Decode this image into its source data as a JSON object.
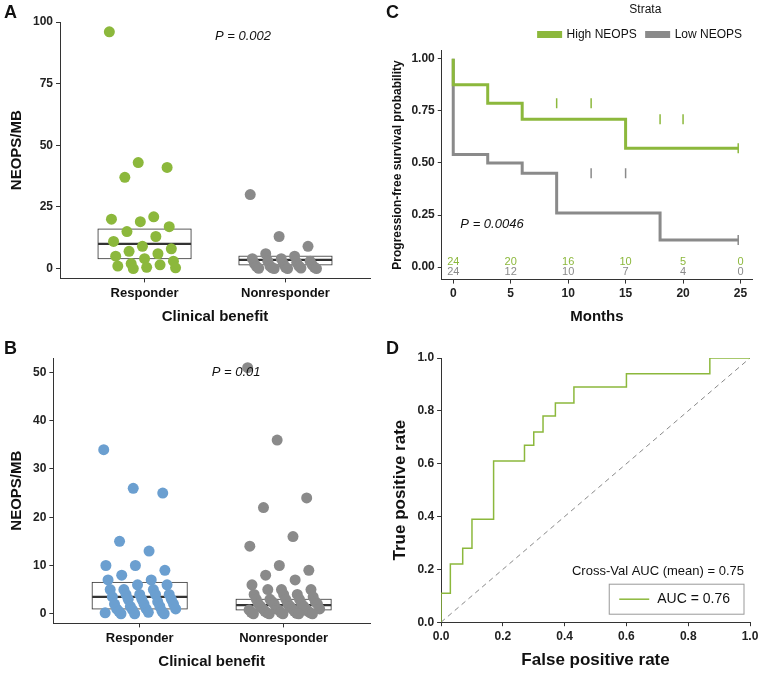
{
  "chart_data": [
    {
      "panel": "A",
      "type": "box_scatter",
      "xlabel": "Clinical benefit",
      "ylabel": "NEOPS/MB",
      "annotation": "P = 0.002",
      "categories": [
        "Responder",
        "Nonresponder"
      ],
      "colors": [
        "#8cb83c",
        "#8a8a8a"
      ],
      "values": [
        [
          96,
          43,
          41,
          37,
          21,
          20,
          19,
          17,
          15,
          13,
          11,
          9,
          8,
          7,
          6,
          5,
          4,
          3,
          2,
          1.5,
          1,
          0.5,
          0.3,
          0
        ],
        [
          30,
          13,
          9,
          6,
          5,
          4,
          4,
          3,
          3,
          2.5,
          2,
          2,
          1.5,
          1,
          1,
          0.8,
          0.5,
          0.5,
          0.3,
          0.2,
          0.1,
          0,
          0,
          0
        ]
      ],
      "boxes": [
        {
          "q1": 4,
          "median": 10,
          "q3": 16
        },
        {
          "q1": 1.5,
          "median": 3.5,
          "q3": 5
        }
      ],
      "ylim": [
        -4,
        100
      ],
      "yticks": [
        0,
        25,
        50,
        75,
        100
      ],
      "grid": false
    },
    {
      "panel": "B",
      "type": "box_scatter",
      "xlabel": "Clinical benefit",
      "ylabel": "NEOPS/MB",
      "annotation": "P = 0.01",
      "categories": [
        "Responder",
        "Nonresponder"
      ],
      "colors": [
        "#6b9fd0",
        "#8a8a8a"
      ],
      "values": [
        [
          34,
          26,
          25,
          15,
          13,
          10,
          10,
          9,
          8,
          7,
          7,
          6,
          6,
          5,
          5,
          5,
          4,
          4,
          4,
          4,
          3.5,
          3,
          3,
          3,
          2.5,
          2,
          2,
          2,
          1.5,
          1.5,
          1,
          1,
          1,
          0.8,
          0.5,
          0.5,
          0.3,
          0.2,
          0,
          0,
          0
        ],
        [
          51,
          36,
          24,
          22,
          16,
          14,
          10,
          9,
          8,
          7,
          6,
          5,
          5,
          5,
          4,
          4,
          4,
          3.5,
          3,
          3,
          3,
          3,
          2.5,
          2.5,
          2,
          2,
          2,
          2,
          2,
          1.5,
          1.5,
          1.5,
          1,
          1,
          1,
          1,
          1,
          0.8,
          0.8,
          0.5,
          0.5,
          0.5,
          0.3,
          0.3,
          0.2,
          0.2,
          0.1,
          0,
          0,
          0,
          0,
          0
        ]
      ],
      "boxes": [
        {
          "q1": 1,
          "median": 3.5,
          "q3": 6.5
        },
        {
          "q1": 0.8,
          "median": 1.8,
          "q3": 3
        }
      ],
      "ylim": [
        -2,
        53
      ],
      "yticks": [
        0,
        10,
        20,
        30,
        40,
        50
      ],
      "grid": false
    },
    {
      "panel": "C",
      "type": "line",
      "xlabel": "Months",
      "ylabel": "Progression-free survival probability",
      "annotation": "P = 0.0046",
      "legend": "top",
      "legend_title": "Strata",
      "grid": false,
      "series": [
        {
          "name": "High NEOPS",
          "color": "#8cb83c",
          "line_style": "steps",
          "x": [
            0,
            3,
            6,
            15,
            24.5,
            24.8
          ],
          "values": [
            1,
            0.875,
            0.786,
            0.71,
            0.57,
            0.57
          ],
          "censored": [
            9,
            12,
            18,
            20,
            24.8
          ],
          "at_risk": [
            24,
            20,
            16,
            10,
            5,
            0
          ]
        },
        {
          "name": "Low NEOPS",
          "color": "#8a8a8a",
          "line_style": "steps",
          "x": [
            0,
            3,
            6,
            9,
            18,
            24.5,
            24.8
          ],
          "values": [
            1,
            0.54,
            0.5,
            0.45,
            0.26,
            0.13,
            0.13
          ],
          "censored": [
            12,
            15,
            24.8
          ],
          "at_risk": [
            24,
            12,
            10,
            7,
            4,
            0
          ]
        }
      ],
      "at_risk_times": [
        0,
        5,
        10,
        15,
        20,
        25
      ],
      "xlim": [
        -1,
        26
      ],
      "xticks": [
        0,
        5,
        10,
        15,
        20,
        25
      ],
      "ylim": [
        -0.06,
        1.04
      ],
      "yticks": [
        {
          "value": 0,
          "label": "0.00"
        },
        {
          "value": 0.25,
          "label": "0.25"
        },
        {
          "value": 0.5,
          "label": "0.50"
        },
        {
          "value": 0.75,
          "label": "0.75"
        },
        {
          "value": 1,
          "label": "1.00"
        }
      ]
    },
    {
      "panel": "D",
      "type": "line",
      "xlabel": "False positive rate",
      "ylabel": "True positive rate",
      "annotation": "Cross-Val AUC (mean) = 0.75",
      "legend": "lower right",
      "grid": false,
      "series": [
        {
          "name": "AUC = 0.76",
          "color": "#8cb83c",
          "line_style": "solid",
          "x": [
            0,
            0,
            0.03,
            0.03,
            0.07,
            0.07,
            0.1,
            0.1,
            0.17,
            0.17,
            0.27,
            0.27,
            0.3,
            0.3,
            0.33,
            0.33,
            0.37,
            0.37,
            0.43,
            0.43,
            0.6,
            0.6,
            0.87,
            0.87,
            1
          ],
          "values": [
            0,
            0.11,
            0.11,
            0.22,
            0.22,
            0.28,
            0.28,
            0.39,
            0.39,
            0.61,
            0.61,
            0.67,
            0.67,
            0.72,
            0.72,
            0.78,
            0.78,
            0.83,
            0.83,
            0.89,
            0.89,
            0.94,
            0.94,
            1,
            1
          ]
        },
        {
          "color": "#888888",
          "line_style": "dashed",
          "x": [
            0,
            1
          ],
          "values": [
            0,
            1
          ]
        }
      ],
      "xlim": [
        0,
        1
      ],
      "xticks": [
        {
          "value": 0,
          "label": "0.0"
        },
        {
          "value": 0.2,
          "label": "0.2"
        },
        {
          "value": 0.4,
          "label": "0.4"
        },
        {
          "value": 0.6,
          "label": "0.6"
        },
        {
          "value": 0.8,
          "label": "0.8"
        },
        {
          "value": 1,
          "label": "1.0"
        }
      ],
      "ylim": [
        0,
        1
      ],
      "yticks": [
        {
          "value": 0,
          "label": "0.0"
        },
        {
          "value": 0.2,
          "label": "0.2"
        },
        {
          "value": 0.4,
          "label": "0.4"
        },
        {
          "value": 0.6,
          "label": "0.6"
        },
        {
          "value": 0.8,
          "label": "0.8"
        },
        {
          "value": 1,
          "label": "1.0"
        }
      ]
    }
  ]
}
